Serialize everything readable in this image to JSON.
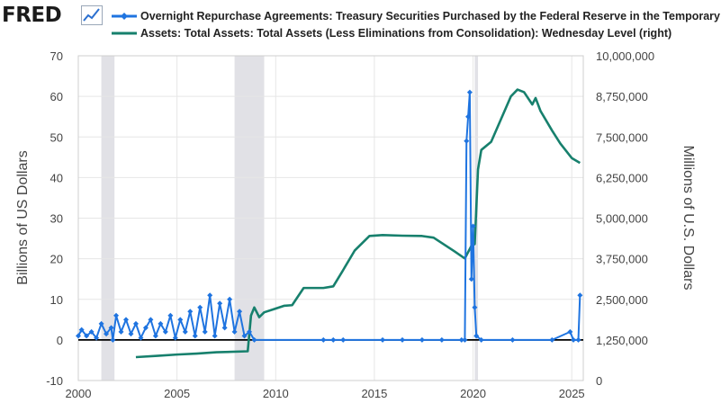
{
  "header": {
    "logo_text": "FRED",
    "logo_icon": "line-chart-icon"
  },
  "colors": {
    "series_left": "#1f74e0",
    "series_right": "#17806d",
    "recession": "#e1e1e6",
    "grid": "#e6e6e6",
    "zero_line": "#000000"
  },
  "chart_data": {
    "type": "line",
    "series": [
      {
        "name": "Overnight Repurchase Agreements: Treasury Securities Purchased by the Federal Reserve in the Temporary Open Market Operations (left)",
        "axis": "left",
        "unit": "Billions of US Dollars",
        "points": [
          [
            "2000-01",
            1
          ],
          [
            "2000-03",
            2.5
          ],
          [
            "2000-06",
            1
          ],
          [
            "2000-09",
            2
          ],
          [
            "2000-12",
            0.5
          ],
          [
            "2001-03",
            4
          ],
          [
            "2001-06",
            1.5
          ],
          [
            "2001-09",
            3
          ],
          [
            "2001-10",
            0
          ],
          [
            "2001-12",
            6
          ],
          [
            "2002-03",
            2
          ],
          [
            "2002-06",
            5
          ],
          [
            "2002-09",
            1.5
          ],
          [
            "2002-12",
            4
          ],
          [
            "2003-03",
            0.5
          ],
          [
            "2003-06",
            3
          ],
          [
            "2003-09",
            5
          ],
          [
            "2003-12",
            1
          ],
          [
            "2004-03",
            4
          ],
          [
            "2004-06",
            2
          ],
          [
            "2004-09",
            6
          ],
          [
            "2004-12",
            0.5
          ],
          [
            "2005-03",
            5
          ],
          [
            "2005-06",
            2
          ],
          [
            "2005-09",
            7
          ],
          [
            "2005-12",
            1
          ],
          [
            "2006-03",
            8
          ],
          [
            "2006-06",
            2
          ],
          [
            "2006-09",
            11
          ],
          [
            "2006-12",
            1
          ],
          [
            "2007-03",
            9
          ],
          [
            "2007-06",
            3
          ],
          [
            "2007-09",
            10
          ],
          [
            "2007-12",
            2
          ],
          [
            "2008-03",
            7
          ],
          [
            "2008-06",
            1
          ],
          [
            "2008-09",
            2
          ],
          [
            "2008-12",
            0
          ],
          [
            "2012-06",
            0
          ],
          [
            "2012-12",
            0
          ],
          [
            "2013-06",
            0
          ],
          [
            "2015-06",
            0
          ],
          [
            "2016-06",
            0
          ],
          [
            "2017-06",
            0
          ],
          [
            "2018-06",
            0
          ],
          [
            "2019-06",
            0
          ],
          [
            "2019-08",
            0
          ],
          [
            "2019-09",
            49
          ],
          [
            "2019-10",
            55
          ],
          [
            "2019-11",
            61
          ],
          [
            "2019-12",
            15
          ],
          [
            "2020-01",
            28
          ],
          [
            "2020-02",
            8
          ],
          [
            "2020-03",
            1
          ],
          [
            "2020-06",
            0
          ],
          [
            "2022-01",
            0
          ],
          [
            "2024-01",
            0
          ],
          [
            "2024-12",
            2
          ],
          [
            "2025-02",
            0
          ],
          [
            "2025-05",
            0
          ],
          [
            "2025-06",
            11
          ]
        ]
      },
      {
        "name": "Assets: Total Assets: Total Assets (Less Eliminations from Consolidation): Wednesday Level (right)",
        "axis": "right",
        "unit": "Millions of U.S. Dollars",
        "points": [
          [
            "2002-12",
            720000
          ],
          [
            "2004-01",
            760000
          ],
          [
            "2005-01",
            800000
          ],
          [
            "2006-01",
            830000
          ],
          [
            "2007-01",
            870000
          ],
          [
            "2008-08",
            900000
          ],
          [
            "2008-10",
            2000000
          ],
          [
            "2008-12",
            2250000
          ],
          [
            "2009-03",
            1950000
          ],
          [
            "2009-06",
            2100000
          ],
          [
            "2009-12",
            2200000
          ],
          [
            "2010-06",
            2300000
          ],
          [
            "2010-11",
            2320000
          ],
          [
            "2011-06",
            2850000
          ],
          [
            "2012-06",
            2850000
          ],
          [
            "2012-12",
            2900000
          ],
          [
            "2013-06",
            3400000
          ],
          [
            "2014-01",
            4000000
          ],
          [
            "2014-10",
            4450000
          ],
          [
            "2015-06",
            4480000
          ],
          [
            "2016-06",
            4460000
          ],
          [
            "2017-06",
            4450000
          ],
          [
            "2018-01",
            4400000
          ],
          [
            "2019-01",
            4000000
          ],
          [
            "2019-08",
            3760000
          ],
          [
            "2019-12",
            4150000
          ],
          [
            "2020-02",
            4200000
          ],
          [
            "2020-04",
            6500000
          ],
          [
            "2020-06",
            7100000
          ],
          [
            "2020-12",
            7350000
          ],
          [
            "2021-06",
            8050000
          ],
          [
            "2021-12",
            8750000
          ],
          [
            "2022-04",
            8960000
          ],
          [
            "2022-08",
            8880000
          ],
          [
            "2023-01",
            8500000
          ],
          [
            "2023-03",
            8700000
          ],
          [
            "2023-06",
            8300000
          ],
          [
            "2024-01",
            7700000
          ],
          [
            "2024-06",
            7300000
          ],
          [
            "2025-01",
            6850000
          ],
          [
            "2025-06",
            6700000
          ]
        ]
      }
    ],
    "x_ticks": [
      "2000",
      "2005",
      "2010",
      "2015",
      "2020",
      "2025"
    ],
    "y_left_ticks": [
      "-10",
      "0",
      "10",
      "20",
      "30",
      "40",
      "50",
      "60",
      "70"
    ],
    "y_right_ticks": [
      "0",
      "1,250,000",
      "2,500,000",
      "3,750,000",
      "5,000,000",
      "6,250,000",
      "7,500,000",
      "8,750,000",
      "10,000,000"
    ],
    "xlim": [
      "2000-01",
      "2025-08"
    ],
    "ylim_left": [
      -10,
      70
    ],
    "ylim_right": [
      0,
      10000000
    ],
    "ylabel_left": "Billions of US Dollars",
    "ylabel_right": "Millions of U.S. Dollars",
    "recessions": [
      [
        "2001-03",
        "2001-11"
      ],
      [
        "2007-12",
        "2009-06"
      ],
      [
        "2020-02",
        "2020-04"
      ]
    ],
    "grid": true,
    "legend_position": "top"
  }
}
